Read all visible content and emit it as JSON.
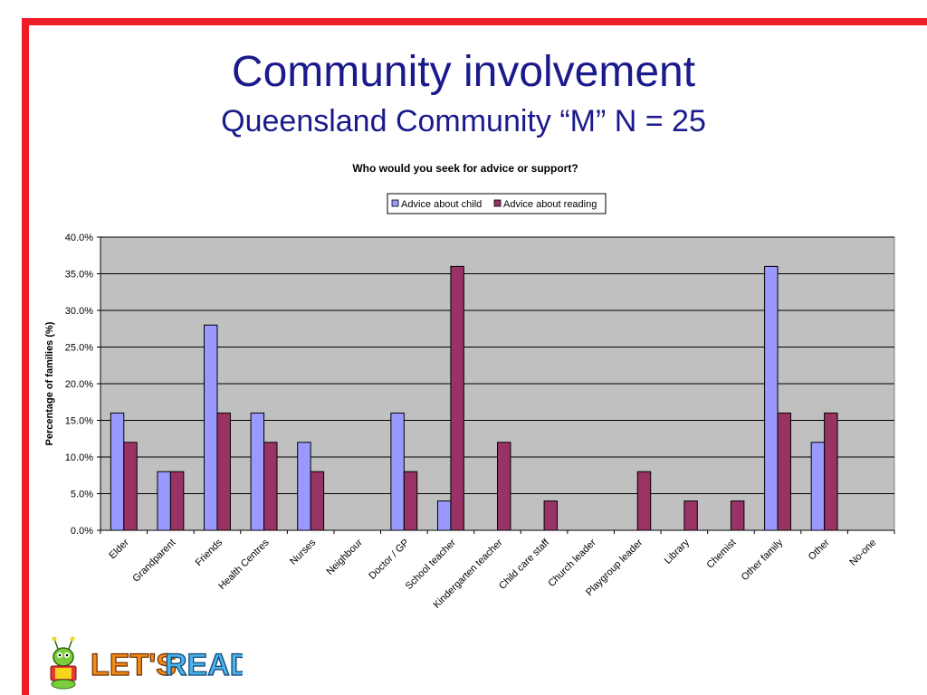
{
  "slide": {
    "title": "Community involvement",
    "subtitle": "Queensland Community “M” N = 25"
  },
  "logo": {
    "text": "LET'S READ"
  },
  "colors": {
    "series1": "#9999ff",
    "series2": "#993366",
    "plot_bg": "#c0c0c0",
    "frame": "#ee1c25",
    "title": "#1a1a8c"
  },
  "chart_data": {
    "type": "bar",
    "title": "Who would you seek for advice or support?",
    "xlabel": "",
    "ylabel": "Percentage of families (%)",
    "ylim": [
      0,
      40
    ],
    "yticks": [
      "0.0%",
      "5.0%",
      "10.0%",
      "15.0%",
      "20.0%",
      "25.0%",
      "30.0%",
      "35.0%",
      "40.0%"
    ],
    "grid": true,
    "legend_position": "top-center",
    "categories": [
      "Elder",
      "Grandparent",
      "Friends",
      "Health Centres",
      "Nurses",
      "Neighbour",
      "Doctor / GP",
      "School teacher",
      "Kindergarten teacher",
      "Child care staff",
      "Church leader",
      "Playgroup leader",
      "Library",
      "Chemist",
      "Other family",
      "Other",
      "No-one"
    ],
    "series": [
      {
        "name": "Advice about child",
        "color": "#9999ff",
        "values": [
          16,
          8,
          28,
          16,
          12,
          0,
          16,
          4,
          0,
          0,
          0,
          0,
          0,
          0,
          36,
          12,
          0
        ]
      },
      {
        "name": "Advice about reading",
        "color": "#993366",
        "values": [
          12,
          8,
          16,
          12,
          8,
          0,
          8,
          36,
          12,
          4,
          0,
          8,
          4,
          4,
          16,
          16,
          0
        ]
      }
    ]
  }
}
